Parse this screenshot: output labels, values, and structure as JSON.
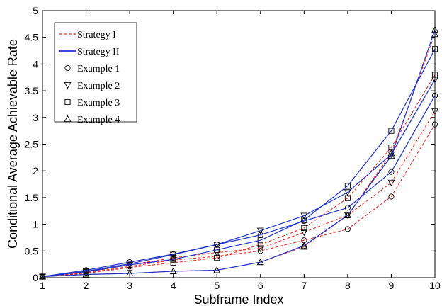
{
  "chart_data": {
    "type": "line",
    "xlabel": "Subframe Index",
    "ylabel": "Conditional Average Achievable Rate",
    "xlim": [
      1,
      10
    ],
    "ylim": [
      0,
      5
    ],
    "x_ticks": [
      1,
      2,
      3,
      4,
      5,
      6,
      7,
      8,
      9,
      10
    ],
    "y_ticks": [
      "0",
      "0.5",
      "1",
      "1.5",
      "2",
      "2.5",
      "3",
      "3.5",
      "4",
      "4.5",
      "5"
    ],
    "grid": false,
    "legend_position": "top-left",
    "legend": [
      {
        "label": "Strategy I",
        "kind": "line",
        "color": "#e8302a",
        "dash": "dashed",
        "marker": "none"
      },
      {
        "label": "Strategy II",
        "kind": "line",
        "color": "#1f33c8",
        "dash": "solid",
        "marker": "none"
      },
      {
        "label": "Example 1",
        "kind": "marker",
        "marker": "circle"
      },
      {
        "label": "Example 2",
        "kind": "marker",
        "marker": "triangle-down"
      },
      {
        "label": "Example 3",
        "kind": "marker",
        "marker": "square"
      },
      {
        "label": "Example 4",
        "kind": "marker",
        "marker": "triangle-up"
      }
    ],
    "x": [
      1,
      2,
      3,
      4,
      5,
      6,
      7,
      8,
      9,
      10
    ],
    "series": [
      {
        "strategy": "Strategy I",
        "example": "Example 1",
        "color": "#e8302a",
        "dash": "dashed",
        "marker": "circle",
        "values": [
          0.02,
          0.09,
          0.21,
          0.33,
          0.4,
          0.5,
          0.7,
          0.91,
          1.52,
          2.87
        ]
      },
      {
        "strategy": "Strategy I",
        "example": "Example 2",
        "color": "#e8302a",
        "dash": "dashed",
        "marker": "triangle-down",
        "values": [
          0.02,
          0.1,
          0.24,
          0.37,
          0.47,
          0.55,
          0.85,
          1.17,
          1.78,
          3.12
        ]
      },
      {
        "strategy": "Strategy I",
        "example": "Example 3",
        "color": "#e8302a",
        "dash": "dashed",
        "marker": "square",
        "values": [
          0.02,
          0.08,
          0.19,
          0.28,
          0.37,
          0.62,
          0.93,
          1.49,
          2.44,
          3.8
        ]
      },
      {
        "strategy": "Strategy I",
        "example": "Example 4",
        "color": "#e8302a",
        "dash": "dashed",
        "marker": "triangle-up",
        "values": [
          0.02,
          0.06,
          0.08,
          0.12,
          0.14,
          0.29,
          0.58,
          1.17,
          2.33,
          4.56
        ]
      },
      {
        "strategy": "Strategy II",
        "example": "Example 1",
        "color": "#1f33c8",
        "dash": "solid",
        "marker": "circle",
        "values": [
          0.02,
          0.14,
          0.29,
          0.44,
          0.62,
          0.8,
          1.06,
          1.31,
          1.98,
          3.41
        ]
      },
      {
        "strategy": "Strategy II",
        "example": "Example 2",
        "color": "#1f33c8",
        "dash": "solid",
        "marker": "triangle-down",
        "values": [
          0.02,
          0.12,
          0.26,
          0.43,
          0.62,
          0.88,
          1.16,
          1.6,
          2.31,
          3.71
        ]
      },
      {
        "strategy": "Strategy II",
        "example": "Example 3",
        "color": "#1f33c8",
        "dash": "solid",
        "marker": "square",
        "values": [
          0.02,
          0.11,
          0.24,
          0.34,
          0.52,
          0.7,
          1.08,
          1.72,
          2.75,
          4.28
        ]
      },
      {
        "strategy": "Strategy II",
        "example": "Example 4",
        "color": "#1f33c8",
        "dash": "solid",
        "marker": "triangle-up",
        "values": [
          0.02,
          0.06,
          0.08,
          0.12,
          0.14,
          0.29,
          0.6,
          1.17,
          2.28,
          4.64
        ]
      }
    ]
  }
}
